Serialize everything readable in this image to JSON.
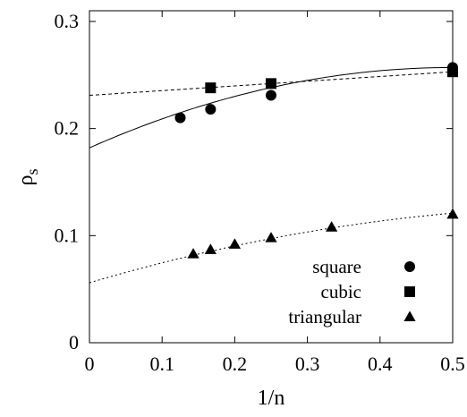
{
  "chart_data": {
    "type": "scatter",
    "xlabel": "1/n",
    "ylabel_main": "ρ",
    "ylabel_sub": "s",
    "xlim": [
      0,
      0.5
    ],
    "ylim": [
      0,
      0.31
    ],
    "x_ticks": [
      0,
      0.1,
      0.2,
      0.3,
      0.4,
      0.5
    ],
    "x_tick_labels": [
      "0",
      "0.1",
      "0.2",
      "0.3",
      "0.4",
      "0.5"
    ],
    "y_ticks": [
      0,
      0.1,
      0.2,
      0.3
    ],
    "y_tick_labels": [
      "0",
      "0.1",
      "0.2",
      "0.3"
    ],
    "grid": false,
    "legend_position": "bottom-right",
    "series": [
      {
        "name": "square",
        "marker": "circle",
        "points": [
          [
            0.125,
            0.21
          ],
          [
            0.1667,
            0.218
          ],
          [
            0.25,
            0.231
          ],
          [
            0.5,
            0.257
          ]
        ],
        "fit": {
          "style": "solid",
          "coeffs": [
            0.182,
            0.3,
            -0.3
          ]
        }
      },
      {
        "name": "cubic",
        "marker": "square",
        "points": [
          [
            0.1667,
            0.238
          ],
          [
            0.25,
            0.242
          ],
          [
            0.5,
            0.253
          ]
        ],
        "fit": {
          "style": "dashed",
          "coeffs": [
            0.231,
            0.044,
            0
          ]
        }
      },
      {
        "name": "triangular",
        "marker": "triangle",
        "points": [
          [
            0.1429,
            0.083
          ],
          [
            0.1667,
            0.087
          ],
          [
            0.2,
            0.092
          ],
          [
            0.25,
            0.098
          ],
          [
            0.3333,
            0.108
          ],
          [
            0.5,
            0.12
          ]
        ],
        "fit": {
          "style": "dotted",
          "coeffs": [
            0.056,
            0.2,
            -0.14
          ]
        }
      }
    ]
  }
}
